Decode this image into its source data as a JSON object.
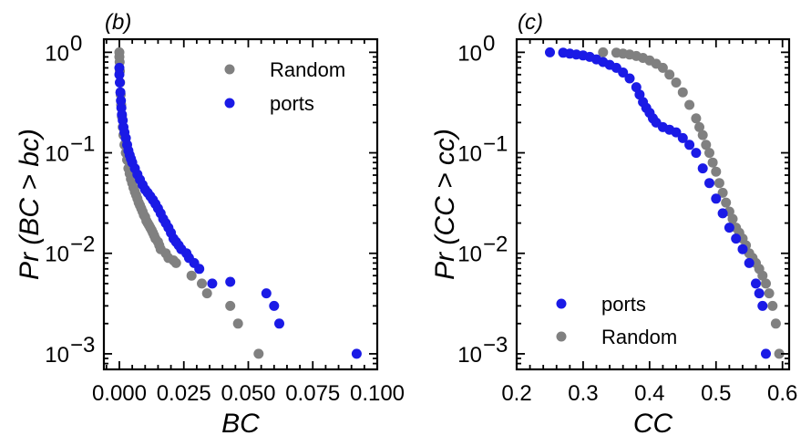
{
  "chart_data": [
    {
      "type": "scatter",
      "panel_label": "(b)",
      "xlabel": "BC",
      "ylabel": "Pr (BC > bc)",
      "xlim": [
        -0.006,
        0.1
      ],
      "ylim": [
        0.0007,
        1.35
      ],
      "yscale": "log",
      "x_ticks": [
        0.0,
        0.025,
        0.05,
        0.075,
        0.1
      ],
      "x_tick_labels": [
        "0.000",
        "0.025",
        "0.050",
        "0.075",
        "0.100"
      ],
      "y_ticks": [
        0.001,
        0.01,
        0.1,
        1
      ],
      "y_tick_labels": [
        "10",
        "10",
        "10",
        "10"
      ],
      "y_tick_exponents": [
        "−3",
        "−2",
        "−1",
        "0"
      ],
      "legend_position": "top-right",
      "legend_order": [
        0,
        1
      ],
      "series": [
        {
          "name": "Random",
          "color": "#808080",
          "x": [
            0.0,
            0.0,
            0.0001,
            0.0002,
            0.0003,
            0.0005,
            0.0007,
            0.001,
            0.0013,
            0.0016,
            0.002,
            0.0025,
            0.003,
            0.0035,
            0.004,
            0.0045,
            0.005,
            0.0055,
            0.006,
            0.0065,
            0.007,
            0.0075,
            0.008,
            0.0085,
            0.009,
            0.0095,
            0.01,
            0.0105,
            0.011,
            0.0115,
            0.012,
            0.0125,
            0.013,
            0.0135,
            0.014,
            0.015,
            0.0155,
            0.016,
            0.018,
            0.019,
            0.021,
            0.022,
            0.028,
            0.032,
            0.034,
            0.043,
            0.046,
            0.054
          ],
          "y": [
            1.0,
            0.9,
            0.8,
            0.65,
            0.5,
            0.38,
            0.3,
            0.23,
            0.18,
            0.15,
            0.12,
            0.1,
            0.085,
            0.07,
            0.062,
            0.055,
            0.05,
            0.045,
            0.041,
            0.038,
            0.035,
            0.032,
            0.03,
            0.028,
            0.026,
            0.024,
            0.023,
            0.021,
            0.02,
            0.019,
            0.018,
            0.017,
            0.016,
            0.015,
            0.014,
            0.013,
            0.012,
            0.011,
            0.01,
            0.009,
            0.0085,
            0.008,
            0.006,
            0.005,
            0.004,
            0.003,
            0.002,
            0.001
          ]
        },
        {
          "name": "ports",
          "color": "#1a1ae6",
          "x": [
            0.0,
            0.0,
            0.0002,
            0.0004,
            0.0006,
            0.0008,
            0.001,
            0.0013,
            0.0016,
            0.002,
            0.0025,
            0.003,
            0.0035,
            0.004,
            0.0045,
            0.005,
            0.006,
            0.007,
            0.008,
            0.009,
            0.01,
            0.011,
            0.012,
            0.013,
            0.014,
            0.015,
            0.016,
            0.017,
            0.018,
            0.019,
            0.02,
            0.021,
            0.022,
            0.023,
            0.024,
            0.026,
            0.027,
            0.029,
            0.031,
            0.036,
            0.043,
            0.057,
            0.06,
            0.062,
            0.092
          ],
          "y": [
            0.7,
            0.6,
            0.5,
            0.4,
            0.33,
            0.28,
            0.24,
            0.21,
            0.18,
            0.16,
            0.14,
            0.12,
            0.105,
            0.095,
            0.087,
            0.08,
            0.07,
            0.061,
            0.054,
            0.048,
            0.043,
            0.04,
            0.037,
            0.034,
            0.031,
            0.028,
            0.025,
            0.022,
            0.02,
            0.018,
            0.016,
            0.014,
            0.013,
            0.012,
            0.011,
            0.01,
            0.009,
            0.008,
            0.007,
            0.005,
            0.0052,
            0.004,
            0.003,
            0.002,
            0.001
          ]
        }
      ]
    },
    {
      "type": "scatter",
      "panel_label": "(c)",
      "xlabel": "CC",
      "ylabel": "Pr (CC > cc)",
      "xlim": [
        0.2,
        0.61
      ],
      "ylim": [
        0.0007,
        1.35
      ],
      "yscale": "log",
      "x_ticks": [
        0.2,
        0.3,
        0.4,
        0.5,
        0.6
      ],
      "x_tick_labels": [
        "0.2",
        "0.3",
        "0.4",
        "0.5",
        "0.6"
      ],
      "y_ticks": [
        0.001,
        0.01,
        0.1,
        1
      ],
      "y_tick_labels": [
        "10",
        "10",
        "10",
        "10"
      ],
      "y_tick_exponents": [
        "−3",
        "−2",
        "−1",
        "0"
      ],
      "legend_position": "lower-left",
      "legend_order": [
        1,
        0
      ],
      "series": [
        {
          "name": "Random",
          "color": "#808080",
          "x": [
            0.33,
            0.35,
            0.36,
            0.37,
            0.38,
            0.39,
            0.4,
            0.41,
            0.42,
            0.43,
            0.44,
            0.45,
            0.46,
            0.47,
            0.475,
            0.48,
            0.485,
            0.49,
            0.495,
            0.5,
            0.505,
            0.51,
            0.515,
            0.52,
            0.525,
            0.53,
            0.535,
            0.54,
            0.545,
            0.55,
            0.555,
            0.56,
            0.565,
            0.57,
            0.575,
            0.58,
            0.585,
            0.59,
            0.595
          ],
          "y": [
            1.0,
            0.99,
            0.97,
            0.95,
            0.92,
            0.88,
            0.83,
            0.77,
            0.7,
            0.6,
            0.5,
            0.4,
            0.3,
            0.22,
            0.18,
            0.15,
            0.12,
            0.1,
            0.08,
            0.065,
            0.05,
            0.04,
            0.032,
            0.026,
            0.022,
            0.018,
            0.016,
            0.014,
            0.012,
            0.01,
            0.009,
            0.008,
            0.007,
            0.006,
            0.005,
            0.004,
            0.003,
            0.002,
            0.001
          ]
        },
        {
          "name": "ports",
          "color": "#1a1ae6",
          "x": [
            0.25,
            0.27,
            0.28,
            0.29,
            0.3,
            0.31,
            0.32,
            0.33,
            0.34,
            0.35,
            0.36,
            0.37,
            0.38,
            0.385,
            0.39,
            0.395,
            0.4,
            0.405,
            0.41,
            0.42,
            0.43,
            0.44,
            0.45,
            0.46,
            0.47,
            0.48,
            0.49,
            0.5,
            0.51,
            0.52,
            0.53,
            0.54,
            0.55,
            0.56,
            0.565,
            0.57,
            0.575
          ],
          "y": [
            1.0,
            0.99,
            0.97,
            0.95,
            0.93,
            0.9,
            0.85,
            0.8,
            0.75,
            0.7,
            0.63,
            0.55,
            0.45,
            0.38,
            0.32,
            0.28,
            0.25,
            0.22,
            0.2,
            0.18,
            0.17,
            0.16,
            0.14,
            0.12,
            0.1,
            0.07,
            0.05,
            0.035,
            0.025,
            0.018,
            0.014,
            0.011,
            0.008,
            0.005,
            0.004,
            0.003,
            0.001
          ]
        }
      ]
    }
  ]
}
